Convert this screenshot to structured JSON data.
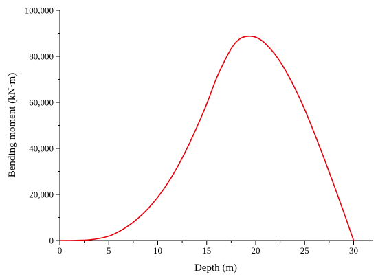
{
  "chart_data": {
    "type": "line",
    "title": "",
    "xlabel": "Depth (m)",
    "ylabel": "Bending moment (kN·m)",
    "xlim": [
      0,
      32
    ],
    "ylim": [
      0,
      100000
    ],
    "x_ticks": [
      0,
      5,
      10,
      15,
      20,
      25,
      30
    ],
    "x_tick_labels": [
      "0",
      "5",
      "10",
      "15",
      "20",
      "25",
      "30"
    ],
    "y_ticks": [
      0,
      20000,
      40000,
      60000,
      80000,
      100000
    ],
    "y_tick_labels": [
      "0",
      "20,000",
      "40,000",
      "60,000",
      "80,000",
      "100,000"
    ],
    "grid": false,
    "legend": "none",
    "series": [
      {
        "color": "#e8000b",
        "x": [
          0,
          1,
          2,
          3,
          4,
          5,
          6,
          7,
          8,
          9,
          10,
          11,
          12,
          13,
          14,
          15,
          16,
          17,
          17.5,
          18,
          18.5,
          19,
          19.5,
          20,
          20.5,
          21,
          22,
          23,
          24,
          25,
          26,
          27,
          28,
          29,
          30
        ],
        "y": [
          0,
          0,
          100,
          300,
          900,
          1900,
          3800,
          6400,
          9700,
          13800,
          18800,
          24800,
          31900,
          40100,
          49300,
          59300,
          70500,
          79500,
          83300,
          86200,
          87900,
          88600,
          88700,
          88300,
          87200,
          85500,
          80700,
          74200,
          66200,
          57000,
          46500,
          35500,
          24000,
          12200,
          0
        ]
      }
    ]
  }
}
